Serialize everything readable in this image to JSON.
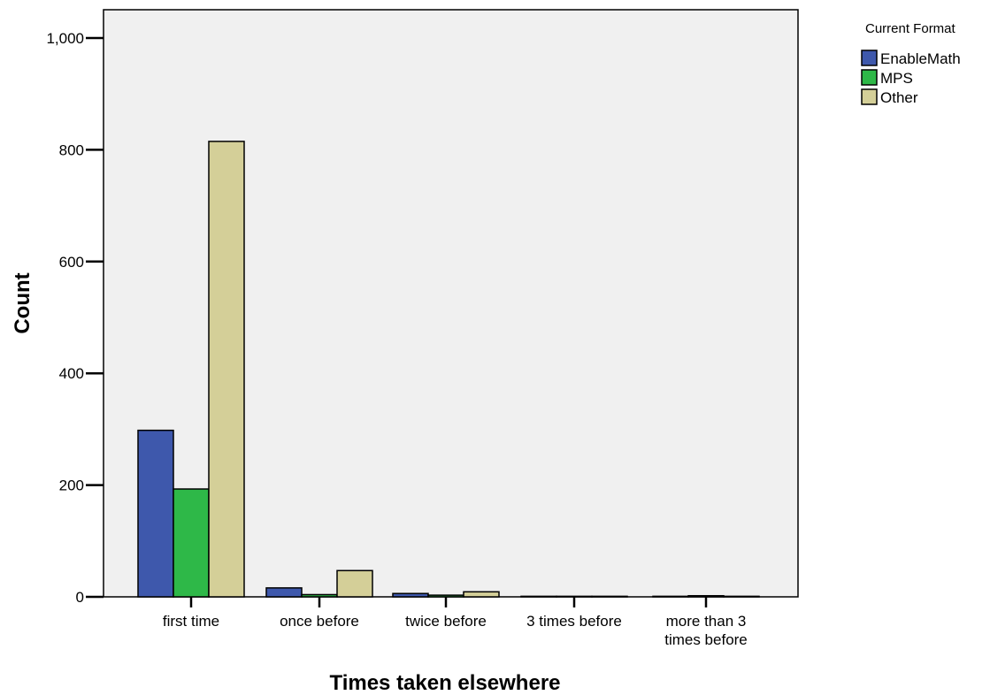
{
  "chart_data": {
    "type": "bar",
    "xlabel": "Times taken elsewhere",
    "ylabel": "Count",
    "ylim": [
      0,
      1000
    ],
    "yticks": [
      {
        "value": 0,
        "label": "0"
      },
      {
        "value": 200,
        "label": "200"
      },
      {
        "value": 400,
        "label": "400"
      },
      {
        "value": 600,
        "label": "600"
      },
      {
        "value": 800,
        "label": "800"
      },
      {
        "value": 1000,
        "label": "1,000"
      }
    ],
    "categories": [
      [
        "first time"
      ],
      [
        "once before"
      ],
      [
        "twice before"
      ],
      [
        "3 times before"
      ],
      [
        "more than 3",
        "times before"
      ]
    ],
    "legend_title": "Current Format",
    "legend_position": "top-right",
    "plot_background": "#f0f0f0",
    "grid": false,
    "series": [
      {
        "name": "EnableMath",
        "color": "#3e58ac",
        "values": [
          298,
          16,
          6,
          1,
          1
        ]
      },
      {
        "name": "MPS",
        "color": "#2eb848",
        "values": [
          193,
          4,
          3,
          1,
          2
        ]
      },
      {
        "name": "Other",
        "color": "#d4cf98",
        "values": [
          815,
          47,
          9,
          1,
          1
        ]
      }
    ]
  }
}
